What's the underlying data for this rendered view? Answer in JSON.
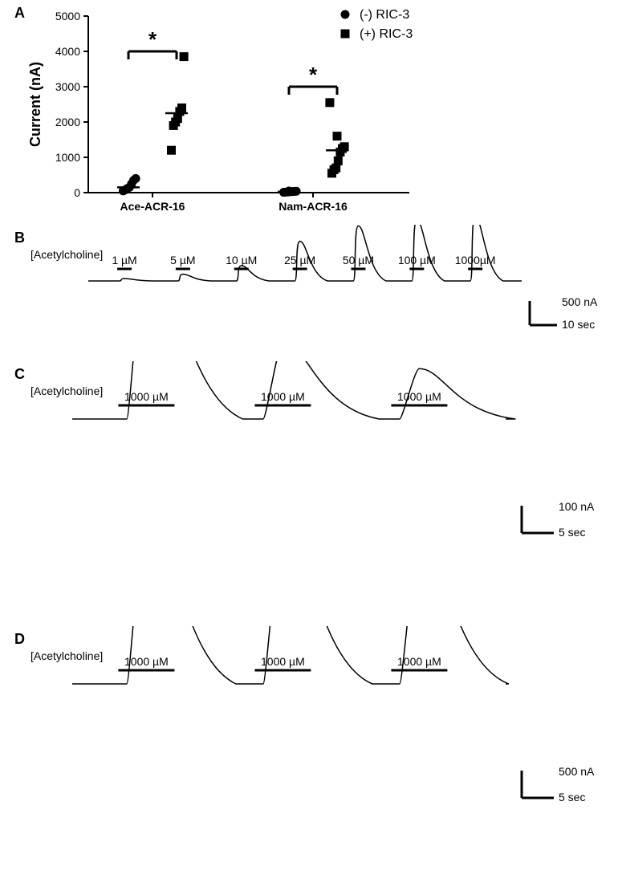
{
  "panelA": {
    "label": "A",
    "type": "scatter",
    "ylabel": "Current (nA)",
    "ylim": [
      0,
      5000
    ],
    "ytick_step": 1000,
    "categories": [
      "Ace-ACR-16",
      "Nam-ACR-16"
    ],
    "legend": [
      {
        "label": "(-) RIC-3",
        "marker": "circle",
        "color": "#000000"
      },
      {
        "label": "(+) RIC-3",
        "marker": "square",
        "color": "#000000"
      }
    ],
    "series": {
      "ace_neg": {
        "x_group": "Ace-ACR-16",
        "marker": "circle",
        "points": [
          50,
          80,
          120,
          150,
          250,
          350,
          400
        ],
        "median": 150
      },
      "ace_pos": {
        "x_group": "Ace-ACR-16",
        "marker": "square",
        "points": [
          1200,
          1900,
          2000,
          2100,
          2300,
          2400,
          3850
        ],
        "median": 2250
      },
      "nam_neg": {
        "x_group": "Nam-ACR-16",
        "marker": "circle",
        "points": [
          10,
          15,
          20,
          25,
          30,
          35,
          40,
          45
        ],
        "median": 25
      },
      "nam_pos": {
        "x_group": "Nam-ACR-16",
        "marker": "square",
        "points": [
          550,
          650,
          700,
          900,
          1150,
          1250,
          1300,
          1600,
          2550
        ],
        "median": 1200
      }
    },
    "jitter": [
      -0.25,
      -0.15,
      -0.05,
      0.05,
      0.15,
      0.25,
      0.35,
      0.0,
      -0.35
    ],
    "brackets": [
      {
        "groups": [
          "ace_neg",
          "ace_pos"
        ],
        "y": 4000,
        "symbol": "*"
      },
      {
        "groups": [
          "nam_neg",
          "nam_pos"
        ],
        "y": 3000,
        "symbol": "*"
      }
    ],
    "colors": {
      "marker": "#000000",
      "axis": "#000000",
      "background": "#ffffff"
    },
    "label_fontsize": 14,
    "axis_title_fontsize": 18,
    "marker_size": 9
  },
  "panelB": {
    "label": "B",
    "header": "[Acetylcholine]",
    "type": "trace",
    "scalebar": {
      "y_value": "500 nA",
      "x_value": "10 sec"
    },
    "applications": [
      {
        "label": "1 µM",
        "peak": -40
      },
      {
        "label": "5 µM",
        "peak": -110
      },
      {
        "label": "10 µM",
        "peak": -250
      },
      {
        "label": "25 µM",
        "peak": -650
      },
      {
        "label": "50 µM",
        "peak": -900
      },
      {
        "label": "100 µM",
        "peak": -1000
      },
      {
        "label": "1000µM",
        "peak": -1050
      }
    ],
    "trace_color": "#000000",
    "label_fontsize": 14
  },
  "panelC": {
    "label": "C",
    "header": "[Acetylcholine]",
    "type": "trace",
    "scalebar": {
      "y_value": "100 nA",
      "x_value": "5 sec"
    },
    "applications": [
      {
        "label": "1000 µM",
        "peak": -550
      },
      {
        "label": "1000 µM",
        "peak": -230
      },
      {
        "label": "1000 µM",
        "peak": -150
      }
    ],
    "trace_color": "#000000",
    "label_fontsize": 14
  },
  "panelD": {
    "label": "D",
    "header": "[Acetylcholine]",
    "type": "trace",
    "scalebar": {
      "y_value": "500 nA",
      "x_value": "5 sec"
    },
    "applications": [
      {
        "label": "1000 µM",
        "peak": -1650
      },
      {
        "label": "1000 µM",
        "peak": -1500
      },
      {
        "label": "1000 µM",
        "peak": -1350
      }
    ],
    "trace_color": "#000000",
    "label_fontsize": 14
  }
}
